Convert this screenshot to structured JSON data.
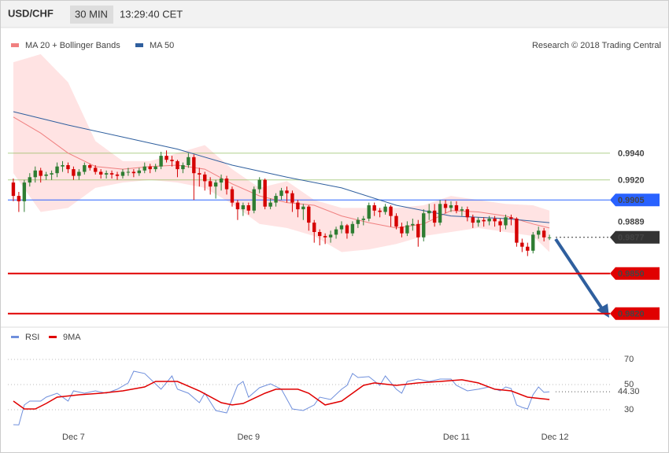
{
  "header": {
    "symbol": "USD/CHF",
    "interval": "30 MIN",
    "time": "13:29:40 CET",
    "credit": "Research © 2018 Trading Central"
  },
  "chart_data": [
    {
      "type": "candlestick",
      "xlim": [
        -1,
        100
      ],
      "ylim": [
        0.9813,
        1.0031
      ],
      "up_color": "#2e7d32",
      "down_color": "#d50000",
      "candles": [
        [
          0.9918,
          0.9921,
          0.9904,
          0.9908
        ],
        [
          0.9908,
          0.9911,
          0.9896,
          0.9904
        ],
        [
          0.9904,
          0.992,
          0.9896,
          0.9918
        ],
        [
          0.9918,
          0.9925,
          0.9915,
          0.9922
        ],
        [
          0.9922,
          0.993,
          0.9918,
          0.9927
        ],
        [
          0.9927,
          0.9929,
          0.9918,
          0.9923
        ],
        [
          0.9923,
          0.9926,
          0.992,
          0.9924
        ],
        [
          0.9924,
          0.9927,
          0.992,
          0.9925
        ],
        [
          0.9925,
          0.9933,
          0.9922,
          0.993
        ],
        [
          0.993,
          0.9934,
          0.9926,
          0.9931
        ],
        [
          0.9931,
          0.9933,
          0.9925,
          0.9928
        ],
        [
          0.9928,
          0.993,
          0.992,
          0.9923
        ],
        [
          0.9923,
          0.9928,
          0.992,
          0.9926
        ],
        [
          0.9926,
          0.9933,
          0.9924,
          0.9931
        ],
        [
          0.9931,
          0.9932,
          0.9927,
          0.9929
        ],
        [
          0.9929,
          0.9931,
          0.9924,
          0.9926
        ],
        [
          0.9926,
          0.9928,
          0.9921,
          0.9924
        ],
        [
          0.9924,
          0.9927,
          0.9921,
          0.9925
        ],
        [
          0.9925,
          0.9927,
          0.9921,
          0.9924
        ],
        [
          0.9924,
          0.9926,
          0.992,
          0.9923
        ],
        [
          0.9923,
          0.9928,
          0.9921,
          0.9926
        ],
        [
          0.9926,
          0.9929,
          0.9923,
          0.9926
        ],
        [
          0.9926,
          0.9928,
          0.9922,
          0.9925
        ],
        [
          0.9925,
          0.9929,
          0.9923,
          0.9927
        ],
        [
          0.9927,
          0.9933,
          0.9925,
          0.993
        ],
        [
          0.993,
          0.9932,
          0.9925,
          0.9928
        ],
        [
          0.9928,
          0.9932,
          0.9926,
          0.993
        ],
        [
          0.993,
          0.9941,
          0.9928,
          0.9938
        ],
        [
          0.9938,
          0.9942,
          0.9933,
          0.9935
        ],
        [
          0.9935,
          0.9938,
          0.993,
          0.9934
        ],
        [
          0.9934,
          0.9935,
          0.9922,
          0.9928
        ],
        [
          0.9928,
          0.9933,
          0.9925,
          0.9931
        ],
        [
          0.9931,
          0.994,
          0.9929,
          0.9937
        ],
        [
          0.9937,
          0.9939,
          0.9905,
          0.9925
        ],
        [
          0.9925,
          0.9929,
          0.9915,
          0.9924
        ],
        [
          0.9924,
          0.9926,
          0.9912,
          0.9919
        ],
        [
          0.9919,
          0.9922,
          0.9909,
          0.9915
        ],
        [
          0.9915,
          0.992,
          0.9906,
          0.9918
        ],
        [
          0.9918,
          0.9924,
          0.9912,
          0.9921
        ],
        [
          0.9921,
          0.9923,
          0.9909,
          0.9913
        ],
        [
          0.9913,
          0.9915,
          0.99,
          0.9903
        ],
        [
          0.9903,
          0.9905,
          0.989,
          0.9898
        ],
        [
          0.9898,
          0.9903,
          0.9893,
          0.9901
        ],
        [
          0.9901,
          0.9903,
          0.9894,
          0.9897
        ],
        [
          0.9897,
          0.9915,
          0.9895,
          0.9913
        ],
        [
          0.9913,
          0.9922,
          0.991,
          0.992
        ],
        [
          0.992,
          0.9921,
          0.9898,
          0.99
        ],
        [
          0.99,
          0.9906,
          0.9898,
          0.9903
        ],
        [
          0.9903,
          0.991,
          0.99,
          0.9908
        ],
        [
          0.9908,
          0.9914,
          0.9905,
          0.9912
        ],
        [
          0.9912,
          0.9915,
          0.9903,
          0.991
        ],
        [
          0.991,
          0.9912,
          0.9896,
          0.9903
        ],
        [
          0.9903,
          0.9905,
          0.9892,
          0.9898
        ],
        [
          0.9898,
          0.9902,
          0.989,
          0.99
        ],
        [
          0.99,
          0.9901,
          0.9882,
          0.9888
        ],
        [
          0.9888,
          0.989,
          0.9873,
          0.9881
        ],
        [
          0.9881,
          0.9883,
          0.9871,
          0.9878
        ],
        [
          0.9878,
          0.988,
          0.9872,
          0.9877
        ],
        [
          0.9877,
          0.9882,
          0.9873,
          0.9879
        ],
        [
          0.9879,
          0.9885,
          0.9876,
          0.9883
        ],
        [
          0.9883,
          0.9889,
          0.988,
          0.9886
        ],
        [
          0.9886,
          0.9887,
          0.9876,
          0.988
        ],
        [
          0.988,
          0.9889,
          0.9878,
          0.9887
        ],
        [
          0.9887,
          0.9892,
          0.9884,
          0.989
        ],
        [
          0.989,
          0.9893,
          0.9886,
          0.9891
        ],
        [
          0.9891,
          0.9903,
          0.9889,
          0.9901
        ],
        [
          0.9901,
          0.9903,
          0.9893,
          0.9897
        ],
        [
          0.9897,
          0.9899,
          0.9892,
          0.9896
        ],
        [
          0.9896,
          0.9902,
          0.9894,
          0.99
        ],
        [
          0.99,
          0.9901,
          0.9885,
          0.9893
        ],
        [
          0.9893,
          0.9895,
          0.9883,
          0.9885
        ],
        [
          0.9885,
          0.9888,
          0.9877,
          0.988
        ],
        [
          0.988,
          0.9889,
          0.9878,
          0.9886
        ],
        [
          0.9886,
          0.9891,
          0.9882,
          0.9887
        ],
        [
          0.9887,
          0.989,
          0.987,
          0.9877
        ],
        [
          0.9877,
          0.9898,
          0.9874,
          0.9895
        ],
        [
          0.9895,
          0.9902,
          0.989,
          0.9897
        ],
        [
          0.9897,
          0.9902,
          0.9885,
          0.9888
        ],
        [
          0.9888,
          0.9905,
          0.9886,
          0.9902
        ],
        [
          0.9902,
          0.9905,
          0.9895,
          0.9899
        ],
        [
          0.9899,
          0.9904,
          0.9896,
          0.9901
        ],
        [
          0.9901,
          0.9904,
          0.9895,
          0.9897
        ],
        [
          0.9897,
          0.99,
          0.9893,
          0.9898
        ],
        [
          0.9898,
          0.99,
          0.9889,
          0.9892
        ],
        [
          0.9892,
          0.9894,
          0.9884,
          0.9888
        ],
        [
          0.9888,
          0.9892,
          0.9885,
          0.989
        ],
        [
          0.989,
          0.9892,
          0.9885,
          0.9889
        ],
        [
          0.9889,
          0.9893,
          0.9886,
          0.9891
        ],
        [
          0.9891,
          0.9893,
          0.9885,
          0.9889
        ],
        [
          0.9889,
          0.9891,
          0.9881,
          0.9886
        ],
        [
          0.9886,
          0.9894,
          0.9883,
          0.9892
        ],
        [
          0.9892,
          0.9894,
          0.9886,
          0.9891
        ],
        [
          0.9891,
          0.9892,
          0.987,
          0.9873
        ],
        [
          0.9873,
          0.9876,
          0.9866,
          0.987
        ],
        [
          0.987,
          0.9873,
          0.9863,
          0.9867
        ],
        [
          0.9867,
          0.9881,
          0.9865,
          0.9879
        ],
        [
          0.9879,
          0.9885,
          0.9876,
          0.9882
        ],
        [
          0.9882,
          0.9884,
          0.9874,
          0.9877
        ],
        [
          0.9877,
          0.9879,
          0.9875,
          0.9877
        ]
      ],
      "series": [
        {
          "name": "MA 20 + Bollinger Bands",
          "color": "#f08080",
          "band_color": "#ffe3e3",
          "x": [
            0,
            5,
            10,
            15,
            20,
            25,
            30,
            35,
            40,
            45,
            50,
            55,
            60,
            65,
            70,
            75,
            80,
            85,
            90,
            95,
            98
          ],
          "values": [
            0.9967,
            0.9955,
            0.994,
            0.993,
            0.9928,
            0.993,
            0.9931,
            0.9928,
            0.9917,
            0.9908,
            0.9903,
            0.9901,
            0.9893,
            0.9888,
            0.9884,
            0.9887,
            0.9897,
            0.9896,
            0.9893,
            0.9887,
            0.9884
          ],
          "upper": [
            1.0008,
            1.0014,
            0.9993,
            0.9949,
            0.9934,
            0.9934,
            0.994,
            0.9946,
            0.9928,
            0.9914,
            0.9919,
            0.9905,
            0.9899,
            0.9899,
            0.9899,
            0.9901,
            0.9908,
            0.9905,
            0.9902,
            0.9901,
            0.9897
          ],
          "lower": [
            0.9925,
            0.9896,
            0.9899,
            0.9914,
            0.9918,
            0.992,
            0.9918,
            0.9914,
            0.9902,
            0.9887,
            0.9884,
            0.9878,
            0.9866,
            0.9868,
            0.9872,
            0.9878,
            0.9881,
            0.9884,
            0.9881,
            0.9878,
            0.9866
          ]
        },
        {
          "name": "MA 50",
          "color": "#2f5f9e",
          "x": [
            0,
            10,
            20,
            30,
            40,
            50,
            60,
            70,
            80,
            90,
            98
          ],
          "values": [
            0.9971,
            0.9961,
            0.9952,
            0.9943,
            0.9931,
            0.9922,
            0.9914,
            0.9901,
            0.9893,
            0.9891,
            0.9888
          ]
        }
      ],
      "levels": [
        {
          "value": 0.994,
          "label": "0.9940",
          "color": "#7cb342",
          "line": true,
          "tag": false,
          "dash": false
        },
        {
          "value": 0.992,
          "label": "0.9920",
          "color": "#7cb342",
          "line": true,
          "tag": false,
          "dash": false
        },
        {
          "value": 0.9905,
          "label": "0.9905",
          "color": "#2962ff",
          "line": true,
          "tag": true,
          "dash": false
        },
        {
          "value": 0.9889,
          "label": "0.9889",
          "color": "#333333",
          "line": false,
          "tag": false,
          "dash": false
        },
        {
          "value": 0.9877,
          "label": "0.9877",
          "color": "#333333",
          "line": true,
          "tag": true,
          "dash": true
        },
        {
          "value": 0.985,
          "label": "0.9850",
          "color": "#e00000",
          "line": true,
          "tag": true,
          "dash": false
        },
        {
          "value": 0.982,
          "label": "0.9820",
          "color": "#e00000",
          "line": true,
          "tag": true,
          "dash": false
        }
      ]
    },
    {
      "type": "line",
      "xlim": [
        -1,
        100
      ],
      "ylim": [
        15,
        80
      ],
      "yticks": [
        70,
        50,
        30
      ],
      "xticks": [
        {
          "value": 11,
          "label": "Dec 7"
        },
        {
          "value": 43,
          "label": "Dec 9"
        },
        {
          "value": 81,
          "label": "Dec 11"
        },
        {
          "value": 99,
          "label": "Dec 12"
        }
      ],
      "last": {
        "value": 44.3,
        "label": "44.30"
      },
      "series": [
        {
          "name": "RSI",
          "color": "#6f8fdc",
          "x": [
            0,
            1,
            2,
            3,
            5,
            6,
            8,
            10,
            11,
            13,
            15,
            17,
            19,
            21,
            22,
            24,
            27,
            29,
            30,
            32,
            34,
            35,
            37,
            39,
            41,
            42,
            43,
            45,
            47,
            49,
            51,
            53,
            55,
            56,
            58,
            60,
            61,
            62,
            63,
            65,
            67,
            68,
            70,
            71,
            72,
            74,
            76,
            78,
            80,
            81,
            83,
            85,
            87,
            89,
            90,
            91,
            92,
            93,
            94,
            95,
            96,
            97,
            98
          ],
          "values": [
            18.1,
            18,
            33.8,
            36.9,
            36.9,
            40,
            43.1,
            36.9,
            45,
            43.1,
            45,
            43.1,
            46.3,
            51.3,
            60.6,
            58.8,
            46.3,
            56.9,
            46.3,
            43.1,
            35.6,
            43.1,
            29.4,
            27.5,
            49.4,
            52.5,
            40,
            47.5,
            50.6,
            46.3,
            30.6,
            29.4,
            33.8,
            40,
            38.1,
            46.3,
            49.4,
            58.8,
            55.6,
            56.3,
            49.4,
            56.9,
            46.3,
            43.1,
            52.5,
            54.4,
            52.5,
            54.4,
            54.4,
            49.4,
            45,
            46.3,
            48.1,
            45,
            48.1,
            46.9,
            33.8,
            31.9,
            30.6,
            41.9,
            48.1,
            43.8,
            44.3
          ]
        },
        {
          "name": "9MA",
          "color": "#e00000",
          "x": [
            0,
            2,
            4,
            6,
            8,
            12,
            16,
            20,
            24,
            26,
            30,
            34,
            38,
            40,
            42,
            46,
            48,
            52,
            54,
            57,
            60,
            62,
            64,
            66,
            70,
            74,
            78,
            82,
            85,
            88,
            91,
            94,
            98
          ],
          "values": [
            36.9,
            30.6,
            30.6,
            35,
            40,
            41.9,
            43.1,
            45,
            48.1,
            52.5,
            52.5,
            45,
            35.6,
            33.8,
            35,
            43.1,
            46.3,
            46.3,
            43.1,
            33.8,
            36.9,
            43.1,
            49.4,
            51.3,
            49.4,
            51.3,
            52.5,
            53.8,
            51.3,
            46.3,
            45,
            40,
            38.1
          ]
        }
      ]
    }
  ]
}
